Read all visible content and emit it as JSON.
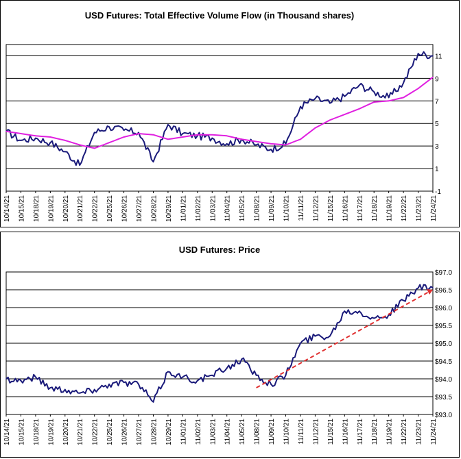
{
  "chart_data": [
    {
      "type": "line",
      "title": "USD Futures: Total Effective Volume Flow (in Thousand shares)",
      "xlabel": "",
      "ylabel": "",
      "ylim": [
        -1,
        12
      ],
      "yticks": [
        -1,
        1,
        3,
        5,
        7,
        9,
        11
      ],
      "ytick_side": "right",
      "grid": "horizontal",
      "categories": [
        "10/14/21",
        "10/15/21",
        "10/18/21",
        "10/19/21",
        "10/20/21",
        "10/21/21",
        "10/22/21",
        "10/25/21",
        "10/26/21",
        "10/27/21",
        "10/28/21",
        "10/29/21",
        "11/01/21",
        "11/02/21",
        "11/03/21",
        "11/04/21",
        "11/05/21",
        "11/08/21",
        "11/09/21",
        "11/10/21",
        "11/11/21",
        "11/12/21",
        "11/15/21",
        "11/16/21",
        "11/17/21",
        "11/18/21",
        "11/19/21",
        "11/22/21",
        "11/23/21",
        "11/24/21"
      ],
      "series": [
        {
          "color": "#1a1a7a",
          "values": [
            4.3,
            3.5,
            3.7,
            3.3,
            2.5,
            1.3,
            4.2,
            4.7,
            4.4,
            4.2,
            1.6,
            4.9,
            4.1,
            3.9,
            3.7,
            3.2,
            3.6,
            3.1,
            2.7,
            3.2,
            6.5,
            7.2,
            6.8,
            7.4,
            8.4,
            7.8,
            7.3,
            8.6,
            11.2,
            11.0
          ]
        },
        {
          "color": "#e020e0",
          "values": [
            4.3,
            4.1,
            3.9,
            3.8,
            3.5,
            3.1,
            2.8,
            3.3,
            3.8,
            4.1,
            4.0,
            3.6,
            3.8,
            4.0,
            4.0,
            3.9,
            3.6,
            3.4,
            3.2,
            3.1,
            3.6,
            4.6,
            5.3,
            5.8,
            6.3,
            6.9,
            7.0,
            7.3,
            8.1,
            9.1
          ]
        }
      ]
    },
    {
      "type": "line",
      "title": "USD Futures: Price",
      "xlabel": "",
      "ylabel": "",
      "ylim": [
        93.0,
        97.0
      ],
      "yticks": [
        "$93.0",
        "$93.5",
        "$94.0",
        "$94.5",
        "$95.0",
        "$95.5",
        "$96.0",
        "$96.5",
        "$97.0"
      ],
      "ytick_values": [
        93.0,
        93.5,
        94.0,
        94.5,
        95.0,
        95.5,
        96.0,
        96.5,
        97.0
      ],
      "ytick_side": "right",
      "grid": "horizontal",
      "categories": [
        "10/14/21",
        "10/15/21",
        "10/18/21",
        "10/19/21",
        "10/20/21",
        "10/21/21",
        "10/22/21",
        "10/25/21",
        "10/26/21",
        "10/27/21",
        "10/28/21",
        "10/29/21",
        "11/01/21",
        "11/02/21",
        "11/03/21",
        "11/04/21",
        "11/05/21",
        "11/08/21",
        "11/09/21",
        "11/10/21",
        "11/11/21",
        "11/12/21",
        "11/15/21",
        "11/16/21",
        "11/17/21",
        "11/18/21",
        "11/19/21",
        "11/22/21",
        "11/23/21",
        "11/24/21"
      ],
      "series": [
        {
          "color": "#1a1a7a",
          "values": [
            94.0,
            93.95,
            94.05,
            93.75,
            93.7,
            93.6,
            93.7,
            93.85,
            93.9,
            93.85,
            93.35,
            94.2,
            94.05,
            93.95,
            94.1,
            94.3,
            94.55,
            94.1,
            93.85,
            94.1,
            95.0,
            95.2,
            95.2,
            95.9,
            95.9,
            95.7,
            95.8,
            96.2,
            96.55,
            96.55
          ]
        }
      ],
      "trendline": {
        "color": "#e03030",
        "style": "dashed",
        "from": {
          "x": "11/08/21",
          "y": 93.75
        },
        "to": {
          "x": "11/24/21",
          "y": 96.5
        }
      }
    }
  ]
}
